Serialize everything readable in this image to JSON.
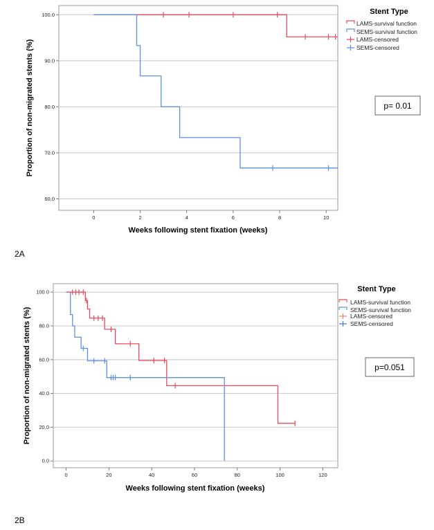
{
  "colors": {
    "lams": "#e8495a",
    "sems": "#5b8fe8"
  },
  "chart_data": [
    {
      "type": "line",
      "panel_label": "2A",
      "xlabel": "Weeks following stent fixation (weeks)",
      "ylabel": "Proportion of non-migrated stents (%)",
      "xlim": [
        -1.5,
        10.5
      ],
      "ylim": [
        57.5,
        102
      ],
      "xticks": [
        "0",
        "2",
        "4",
        "6",
        "8",
        "10"
      ],
      "yticks": [
        "60.0",
        "70.0",
        "80.0",
        "90.0",
        "100.0"
      ],
      "legend": {
        "title": "Stent Type",
        "position": "top-right",
        "entries": [
          "LAMS-survival function",
          "SEMS-survival function",
          "LAMS-censored",
          "SEMS-censored"
        ]
      },
      "p_value": "p= 0.01",
      "series": [
        {
          "name": "LAMS-survival function",
          "x": [
            0,
            8.3,
            8.3,
            10.5
          ],
          "y": [
            100,
            100,
            95.2,
            95.2
          ]
        },
        {
          "name": "SEMS-survival function",
          "x": [
            0,
            1.85,
            1.85,
            2.0,
            2.0,
            2.9,
            2.9,
            3.7,
            3.7,
            6.3,
            6.3,
            10.5
          ],
          "y": [
            100,
            100,
            93.3,
            93.3,
            86.7,
            86.7,
            80.0,
            80.0,
            73.3,
            73.3,
            66.7,
            66.7
          ]
        },
        {
          "name": "LAMS-censored",
          "x": [
            3.0,
            4.1,
            6.0,
            7.9,
            9.1,
            10.1,
            10.4
          ],
          "y": [
            100,
            100,
            100,
            100,
            95.2,
            95.2,
            95.2
          ]
        },
        {
          "name": "SEMS-censored",
          "x": [
            7.7,
            10.1
          ],
          "y": [
            66.7,
            66.7
          ]
        }
      ]
    },
    {
      "type": "line",
      "panel_label": "2B",
      "xlabel": "Weeks following stent fixation (weeks)",
      "ylabel": "Proportion of non-migrated stents (%)",
      "xlim": [
        -6,
        127
      ],
      "ylim": [
        -4,
        105
      ],
      "xticks": [
        "0",
        "20",
        "40",
        "60",
        "80",
        "100",
        "120"
      ],
      "yticks": [
        "0.0",
        "20.0",
        "40.0",
        "60.0",
        "80.0",
        "100.0"
      ],
      "legend": {
        "title": "Stent Type",
        "position": "top-right",
        "entries": [
          "LAMS-survival function",
          "SEMS-survival function",
          "LAMS-censored",
          "SEMS-censored"
        ]
      },
      "p_value": "p=0.051",
      "series": [
        {
          "name": "LAMS-survival function",
          "x": [
            0,
            9,
            9,
            10,
            10,
            11,
            11,
            18,
            18,
            23,
            23,
            34,
            34,
            47,
            47,
            99,
            99,
            107
          ],
          "y": [
            100,
            100,
            95,
            95,
            90,
            90,
            84.6,
            84.6,
            78,
            78,
            69.4,
            69.4,
            59.5,
            59.5,
            44.6,
            44.6,
            22.3,
            22.3
          ]
        },
        {
          "name": "SEMS-survival function",
          "x": [
            2,
            2,
            3,
            3,
            4,
            4,
            7,
            7,
            10,
            10,
            19,
            19,
            74,
            74
          ],
          "y": [
            100,
            86.7,
            86.7,
            80,
            80,
            73.3,
            73.3,
            66.7,
            66.7,
            59.3,
            59.3,
            49.4,
            49.4,
            0
          ]
        },
        {
          "name": "LAMS-censored",
          "x": [
            3,
            4.5,
            6,
            8,
            9.5,
            13,
            15,
            17,
            21,
            30,
            41,
            46,
            51,
            107
          ],
          "y": [
            100,
            100,
            100,
            100,
            95,
            84.6,
            84.6,
            84.6,
            78,
            69.4,
            59.5,
            59.5,
            44.6,
            22.3
          ]
        },
        {
          "name": "SEMS-censored",
          "x": [
            8,
            13,
            18,
            21,
            22,
            23,
            30
          ],
          "y": [
            66.7,
            59.3,
            59.3,
            49.4,
            49.4,
            49.4,
            49.4
          ]
        }
      ]
    }
  ]
}
